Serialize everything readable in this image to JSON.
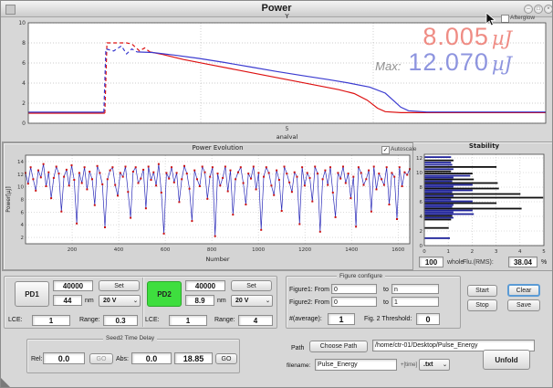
{
  "window": {
    "title": "Power"
  },
  "top_section": {
    "afterglow_label": "Afterglow",
    "current_value": "8.005",
    "current_unit": "µJ",
    "max_prefix": "Max:",
    "max_value": "12.070",
    "max_unit": "µJ"
  },
  "evolution_section": {
    "autoscale_label": "Autoscale"
  },
  "stability_row": {
    "count": "100",
    "count_label": "whole",
    "rms_label": "Flu.(RMS):",
    "rms": "38.04",
    "percent": "%"
  },
  "pd1": {
    "name": "PD1",
    "counts": "40000",
    "set_label": "Set",
    "wavelength": "44",
    "nm_label": "nm",
    "voltage": "20 V",
    "lce_label": "LCE:",
    "lce": "1",
    "range_label": "Range:",
    "range": "0.3"
  },
  "pd2": {
    "name": "PD2",
    "counts": "40000",
    "set_label": "Set",
    "wavelength": "8.9",
    "nm_label": "nm",
    "voltage": "20 V",
    "lce_label": "LCE:",
    "lce": "1",
    "range_label": "Range:",
    "range": "4"
  },
  "seed2": {
    "title": "Seed2 Time Delay",
    "rel_label": "Rel:",
    "rel_value": "0.0",
    "go1_label": "GO",
    "abs_label": "Abs:",
    "abs_value": "0.0",
    "abs_current": "18.85",
    "go2_label": "GO"
  },
  "figure_config": {
    "title": "Figure configure",
    "fig1_label": "Figure1: From",
    "fig1_from": "0",
    "to_label": "to",
    "fig1_to": "n",
    "fig2_label": "Figure2: From",
    "fig2_from": "0",
    "fig2_to": "1",
    "avg_label": "#(average):",
    "avg_value": "1",
    "threshold_label": "Fig. 2 Threshold:",
    "threshold_value": "0"
  },
  "actions": {
    "start": "Start",
    "stop": "Stop",
    "clear": "Clear",
    "save": "Save"
  },
  "path_row": {
    "label": "Path",
    "choose_label": "Choose Path",
    "path": "/home/ctr-01/Desktop/Pulse_Energy"
  },
  "file_row": {
    "label": "filename:",
    "filename": "Pulse_Energy",
    "time_label": "+[time]",
    "extension": ".txt",
    "unfold_label": "Unfold"
  },
  "colors": {
    "current_text": "#ef8c84",
    "max_text": "#8e95df",
    "pd2_green": "#3ede3e",
    "red_series": "#dd1111",
    "blue_series": "#3b3bd0"
  },
  "chart_data": [
    {
      "id": "top_power",
      "type": "line",
      "title": "Y",
      "xlabel": "analval",
      "xtick_labels": [
        "5"
      ],
      "ylim": [
        0,
        10
      ],
      "yticks": [
        0,
        2,
        4,
        6,
        8,
        10
      ],
      "annotations": [
        "8.005 µJ",
        "Max: 12.070 µJ"
      ],
      "series": [
        {
          "name": "pulse-energy-red",
          "color": "#dd1111",
          "segments": [
            {
              "style": "solid",
              "points": [
                [
                  0,
                  1.0
                ],
                [
                  0.148,
                  1.0
                ]
              ]
            },
            {
              "style": "dashed",
              "points": [
                [
                  0.148,
                  1.0
                ],
                [
                  0.152,
                  8.0
                ],
                [
                  0.19,
                  8.0
                ],
                [
                  0.2,
                  7.9
                ],
                [
                  0.215,
                  7.2
                ],
                [
                  0.225,
                  7.5
                ],
                [
                  0.235,
                  7.1
                ]
              ]
            },
            {
              "style": "solid",
              "points": [
                [
                  0.235,
                  7.1
                ],
                [
                  0.26,
                  6.85
                ],
                [
                  0.3,
                  6.35
                ],
                [
                  0.35,
                  5.85
                ],
                [
                  0.4,
                  5.35
                ],
                [
                  0.45,
                  4.85
                ],
                [
                  0.5,
                  4.35
                ],
                [
                  0.55,
                  3.85
                ],
                [
                  0.6,
                  3.35
                ],
                [
                  0.63,
                  2.95
                ],
                [
                  0.655,
                  2.3
                ],
                [
                  0.675,
                  1.5
                ],
                [
                  0.69,
                  1.15
                ],
                [
                  0.72,
                  1.05
                ],
                [
                  1,
                  1.05
                ]
              ]
            }
          ]
        },
        {
          "name": "max-energy-blue",
          "color": "#3b3bd0",
          "segments": [
            {
              "style": "solid",
              "points": [
                [
                  0,
                  1.1
                ],
                [
                  0.146,
                  1.1
                ]
              ]
            },
            {
              "style": "dashed",
              "points": [
                [
                  0.146,
                  1.1
                ],
                [
                  0.15,
                  7.4
                ],
                [
                  0.165,
                  7.2
                ],
                [
                  0.18,
                  7.7
                ],
                [
                  0.19,
                  6.9
                ],
                [
                  0.2,
                  7.4
                ],
                [
                  0.21,
                  7.1
                ]
              ]
            },
            {
              "style": "solid",
              "points": [
                [
                  0.21,
                  7.1
                ],
                [
                  0.24,
                  7.05
                ],
                [
                  0.28,
                  6.8
                ],
                [
                  0.33,
                  6.45
                ],
                [
                  0.38,
                  6.05
                ],
                [
                  0.43,
                  5.6
                ],
                [
                  0.48,
                  5.15
                ],
                [
                  0.53,
                  4.75
                ],
                [
                  0.58,
                  4.35
                ],
                [
                  0.62,
                  4.0
                ],
                [
                  0.66,
                  3.6
                ],
                [
                  0.69,
                  3.0
                ],
                [
                  0.705,
                  2.3
                ],
                [
                  0.72,
                  1.6
                ],
                [
                  0.735,
                  1.25
                ],
                [
                  0.77,
                  1.12
                ],
                [
                  1,
                  1.12
                ]
              ]
            }
          ]
        }
      ]
    },
    {
      "id": "power_evolution",
      "type": "line",
      "title": "Power Evolution",
      "xlabel": "Number",
      "ylabel": "Power[µJ]",
      "xlim": [
        0,
        1650
      ],
      "xticks": [
        200,
        400,
        600,
        800,
        1000,
        1200,
        1400,
        1600
      ],
      "ylim": [
        1,
        15
      ],
      "yticks": [
        2,
        4,
        6,
        8,
        10,
        12,
        14
      ],
      "marker": "red-square",
      "line_color": "#2a2ab8",
      "marker_color": "#cc1111",
      "values": [
        12.2,
        10.5,
        13.1,
        11.2,
        9.4,
        12.6,
        11.5,
        13.6,
        10.1,
        12.3,
        8.2,
        11.4,
        13.2,
        12.1,
        6.1,
        11.6,
        12.7,
        10.2,
        13.4,
        11.1,
        4.2,
        12.2,
        10.6,
        13.1,
        9.6,
        12.4,
        11.2,
        7.1,
        13.3,
        12.2,
        10.4,
        3.6,
        11.2,
        12.6,
        13.1,
        10.3,
        8.6,
        12.2,
        11.6,
        13.2,
        9.2,
        5.1,
        12.4,
        13.1,
        10.6,
        11.3,
        12.7,
        6.6,
        13.2,
        11.1,
        12.3,
        10.2,
        13.6,
        9.1,
        2.6,
        12.2,
        11.3,
        13.1,
        10.7,
        12.2,
        7.6,
        11.2,
        13.3,
        12.1,
        9.7,
        4.6,
        12.6,
        11.2,
        10.1,
        13.2,
        12.3,
        8.1,
        11.6,
        13.1,
        2.2,
        12.1,
        10.2,
        11.4,
        13.2,
        9.3,
        12.6,
        5.6,
        11.2,
        12.3,
        13.1,
        10.6,
        7.2,
        12.1,
        11.3,
        13.2,
        9.6,
        12.2,
        3.2,
        11.6,
        13.1,
        12.2,
        10.2,
        8.7,
        12.6,
        11.1,
        6.2,
        13.2,
        12.1,
        10.7,
        9.2,
        12.3,
        11.6,
        4.1,
        13.1,
        10.2,
        12.2,
        11.4,
        7.7,
        13.2,
        12.1,
        2.9,
        11.2,
        12.6,
        10.3,
        13.1,
        9.1,
        5.2,
        12.2,
        11.3,
        13.2,
        10.6,
        12.1,
        8.2,
        11.6,
        3.7,
        13.1,
        12.2,
        10.3,
        11.2,
        12.6,
        6.1,
        13.2,
        9.6,
        12.1,
        11.2,
        10.3,
        13.1,
        7.2,
        12.2,
        11.6,
        4.9,
        13.1,
        10.1,
        12.3,
        11.9,
        12.8
      ]
    },
    {
      "id": "stability",
      "type": "bar-horizontal",
      "title": "Stability",
      "xlim": [
        0,
        5
      ],
      "xticks": [
        0,
        1,
        2,
        3,
        4,
        5
      ],
      "ylim": [
        0,
        12.5
      ],
      "yticks": [
        0,
        2,
        4,
        6,
        8,
        10,
        12
      ],
      "colors": {
        "k": "#101010",
        "b": "#20249a"
      },
      "bars": [
        [
          12.1,
          1.1,
          "b"
        ],
        [
          11.65,
          1.2,
          "k"
        ],
        [
          11.35,
          1.1,
          "b"
        ],
        [
          11.05,
          1.15,
          "b"
        ],
        [
          10.75,
          3.0,
          "k"
        ],
        [
          10.45,
          1.2,
          "b"
        ],
        [
          10.15,
          1.1,
          "k"
        ],
        [
          9.85,
          2.0,
          "k"
        ],
        [
          9.55,
          1.9,
          "b"
        ],
        [
          9.3,
          1.2,
          "b"
        ],
        [
          9.05,
          2.05,
          "k"
        ],
        [
          8.8,
          1.15,
          "b"
        ],
        [
          8.55,
          3.05,
          "k"
        ],
        [
          8.3,
          2.0,
          "b"
        ],
        [
          8.05,
          1.2,
          "b"
        ],
        [
          7.8,
          3.1,
          "k"
        ],
        [
          7.55,
          2.0,
          "b"
        ],
        [
          7.3,
          1.15,
          "b"
        ],
        [
          7.05,
          4.0,
          "k"
        ],
        [
          6.8,
          1.2,
          "b"
        ],
        [
          6.55,
          4.95,
          "k"
        ],
        [
          6.3,
          1.1,
          "b"
        ],
        [
          6.05,
          2.0,
          "b"
        ],
        [
          5.8,
          3.0,
          "k"
        ],
        [
          5.55,
          1.2,
          "b"
        ],
        [
          5.3,
          1.15,
          "b"
        ],
        [
          5.05,
          4.05,
          "k"
        ],
        [
          4.8,
          2.0,
          "b"
        ],
        [
          4.55,
          1.2,
          "b"
        ],
        [
          4.3,
          2.05,
          "b"
        ],
        [
          4.05,
          1.15,
          "k"
        ],
        [
          3.8,
          1.2,
          "b"
        ],
        [
          3.55,
          1.1,
          "k"
        ],
        [
          2.4,
          1.0,
          "k"
        ],
        [
          1.0,
          1.05,
          "b"
        ]
      ]
    }
  ]
}
